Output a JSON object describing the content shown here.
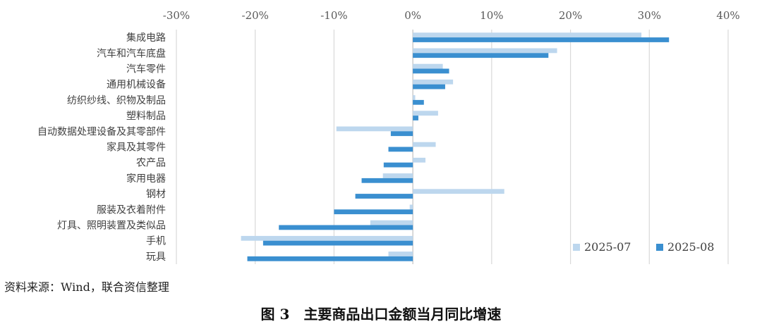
{
  "chart_data": {
    "type": "bar",
    "orientation": "horizontal",
    "x_ticks": [
      "-30%",
      "-20%",
      "-10%",
      "0%",
      "10%",
      "20%",
      "30%",
      "40%"
    ],
    "xlim": [
      -30,
      40
    ],
    "grid": true,
    "legend_position": "bottom-right",
    "categories": [
      "集成电路",
      "汽车和汽车底盘",
      "汽车零件",
      "通用机械设备",
      "纺织纱线、织物及制品",
      "塑料制品",
      "自动数据处理设备及其零部件",
      "家具及其零件",
      "农产品",
      "家用电器",
      "钢材",
      "服装及衣着附件",
      "灯具、照明装置及类似品",
      "手机",
      "玩具"
    ],
    "series": [
      {
        "name": "2025-07",
        "color": "#bdd7ee",
        "values": [
          29.0,
          18.3,
          3.8,
          5.1,
          0.3,
          3.2,
          -9.7,
          2.9,
          1.6,
          -3.8,
          11.6,
          -0.4,
          -5.4,
          -21.8,
          -3.1
        ]
      },
      {
        "name": "2025-08",
        "color": "#3a8fd0",
        "values": [
          32.5,
          17.2,
          4.6,
          4.1,
          1.4,
          0.7,
          -2.8,
          -3.1,
          -3.7,
          -6.5,
          -7.3,
          -10.0,
          -17.0,
          -19.0,
          -21.0
        ]
      }
    ]
  },
  "source_note": "资料来源：Wind，联合资信整理",
  "figure": {
    "number": "图 3",
    "title": "主要商品出口金额当月同比增速"
  }
}
